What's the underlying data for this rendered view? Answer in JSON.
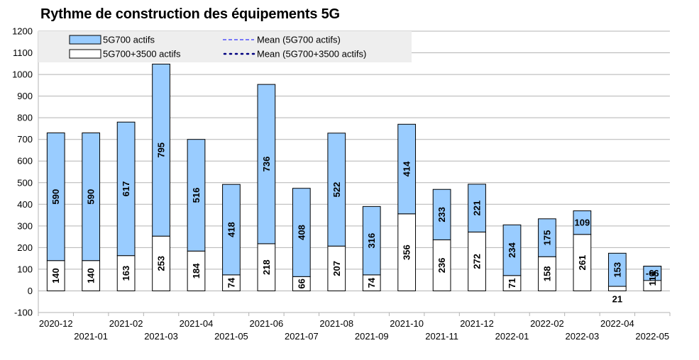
{
  "chart_data": {
    "type": "bar",
    "stacked": true,
    "title": "Rythme de construction des équipements 5G",
    "xlabel": "",
    "ylabel": "",
    "ylim": [
      -100,
      1200
    ],
    "ytick_step": 100,
    "grid": true,
    "legend_position": "top-left",
    "categories": [
      "2020-12",
      "2021-01",
      "2021-02",
      "2021-03",
      "2021-04",
      "2021-05",
      "2021-06",
      "2021-07",
      "2021-08",
      "2021-09",
      "2021-10",
      "2021-11",
      "2021-12",
      "2022-01",
      "2022-02",
      "2022-03",
      "2022-04",
      "2022-05"
    ],
    "series": [
      {
        "name": "5G700+3500 actifs",
        "color": "#ffffff",
        "values": [
          140,
          140,
          163,
          253,
          184,
          74,
          218,
          66,
          207,
          74,
          356,
          236,
          272,
          71,
          158,
          261,
          21,
          114
        ]
      },
      {
        "name": "5G700 actifs",
        "color": "#99ccff",
        "values": [
          590,
          590,
          617,
          795,
          516,
          418,
          736,
          408,
          522,
          316,
          414,
          233,
          221,
          234,
          175,
          109,
          153,
          -66
        ]
      }
    ],
    "legend": [
      {
        "label": "5G700 actifs",
        "kind": "box",
        "color": "#99ccff"
      },
      {
        "label": "Mean (5G700 actifs)",
        "kind": "dash",
        "color": "#3333ff"
      },
      {
        "label": "5G700+3500 actifs",
        "kind": "box",
        "color": "#ffffff"
      },
      {
        "label": "Mean (5G700+3500 actifs)",
        "kind": "dot",
        "color": "#000080"
      }
    ]
  }
}
